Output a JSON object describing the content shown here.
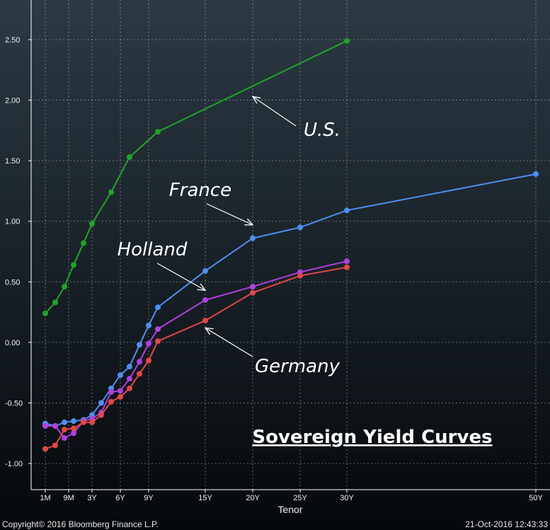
{
  "chart_data": {
    "type": "line",
    "title": "Sovereign Yield Curves",
    "xlabel": "Tenor",
    "ylabel": "",
    "ylim": [
      -1.2,
      2.85
    ],
    "yticks": [
      2.5,
      2.0,
      1.5,
      1.0,
      0.5,
      0.0,
      -0.5,
      -1.0
    ],
    "ytick_labels": [
      "2.50",
      "2.00",
      "1.50",
      "1.00",
      "0.50",
      "0.00",
      "-0.50",
      "-1.00"
    ],
    "xtick_labels": [
      {
        "label": "1M",
        "x": 0.0833
      },
      {
        "label": "9M",
        "x": 0.75
      },
      {
        "label": "3Y",
        "x": 3
      },
      {
        "label": "6Y",
        "x": 6
      },
      {
        "label": "9Y",
        "x": 9
      },
      {
        "label": "15Y",
        "x": 15
      },
      {
        "label": "20Y",
        "x": 20
      },
      {
        "label": "25Y",
        "x": 25
      },
      {
        "label": "30Y",
        "x": 30
      },
      {
        "label": "50Y",
        "x": 50
      }
    ],
    "grid": true,
    "series": [
      {
        "name": "U.S.",
        "color": "#22a22a",
        "points": [
          [
            0.0833,
            0.24
          ],
          [
            0.25,
            0.33
          ],
          [
            0.5,
            0.46
          ],
          [
            1,
            0.64
          ],
          [
            2,
            0.82
          ],
          [
            3,
            0.98
          ],
          [
            5,
            1.24
          ],
          [
            7,
            1.53
          ],
          [
            10,
            1.74
          ],
          [
            30,
            2.49
          ]
        ]
      },
      {
        "name": "France",
        "color": "#4f8ff0",
        "points": [
          [
            0.0833,
            -0.67
          ],
          [
            0.25,
            -0.69
          ],
          [
            0.5,
            -0.66
          ],
          [
            1,
            -0.65
          ],
          [
            2,
            -0.64
          ],
          [
            3,
            -0.6
          ],
          [
            4,
            -0.5
          ],
          [
            5,
            -0.38
          ],
          [
            6,
            -0.27
          ],
          [
            7,
            -0.2
          ],
          [
            8,
            -0.02
          ],
          [
            9,
            0.14
          ],
          [
            10,
            0.29
          ],
          [
            15,
            0.59
          ],
          [
            20,
            0.86
          ],
          [
            25,
            0.95
          ],
          [
            30,
            1.09
          ],
          [
            50,
            1.39
          ]
        ]
      },
      {
        "name": "Holland",
        "color": "#b040e0",
        "points": [
          [
            0.0833,
            -0.69
          ],
          [
            0.25,
            -0.69
          ],
          [
            0.5,
            -0.79
          ],
          [
            1,
            -0.75
          ],
          [
            2,
            -0.65
          ],
          [
            3,
            -0.63
          ],
          [
            4,
            -0.58
          ],
          [
            5,
            -0.41
          ],
          [
            6,
            -0.4
          ],
          [
            7,
            -0.3
          ],
          [
            8,
            -0.16
          ],
          [
            9,
            -0.01
          ],
          [
            10,
            0.11
          ],
          [
            15,
            0.35
          ],
          [
            20,
            0.46
          ],
          [
            25,
            0.58
          ],
          [
            30,
            0.67
          ]
        ]
      },
      {
        "name": "Germany",
        "color": "#e04848",
        "points": [
          [
            0.0833,
            -0.88
          ],
          [
            0.25,
            -0.85
          ],
          [
            0.5,
            -0.72
          ],
          [
            1,
            -0.71
          ],
          [
            2,
            -0.66
          ],
          [
            3,
            -0.66
          ],
          [
            4,
            -0.6
          ],
          [
            5,
            -0.49
          ],
          [
            6,
            -0.45
          ],
          [
            7,
            -0.38
          ],
          [
            8,
            -0.26
          ],
          [
            9,
            -0.15
          ],
          [
            10,
            0.01
          ],
          [
            15,
            0.18
          ],
          [
            20,
            0.41
          ],
          [
            25,
            0.55
          ],
          [
            30,
            0.62
          ]
        ]
      }
    ],
    "annotations": [
      {
        "text": "U.S.",
        "series": "U.S.",
        "target_x": 20,
        "target_y": 2.03
      },
      {
        "text": "France",
        "series": "France",
        "target_x": 20,
        "target_y": 0.97
      },
      {
        "text": "Holland",
        "series": "Holland",
        "target_x": 15,
        "target_y": 0.43
      },
      {
        "text": "Germany",
        "series": "Germany",
        "target_x": 15,
        "target_y": 0.12
      }
    ]
  },
  "footer": {
    "copyright": "Copyright© 2016 Bloomberg Finance L.P.",
    "timestamp": "21-Oct-2016 12:43:33"
  },
  "colors": {
    "background_top": "#2c3a44",
    "background_bottom": "#05080b",
    "grid": "#c8c8c8",
    "axis": "#ffffff",
    "arrow": "#ffffff"
  }
}
